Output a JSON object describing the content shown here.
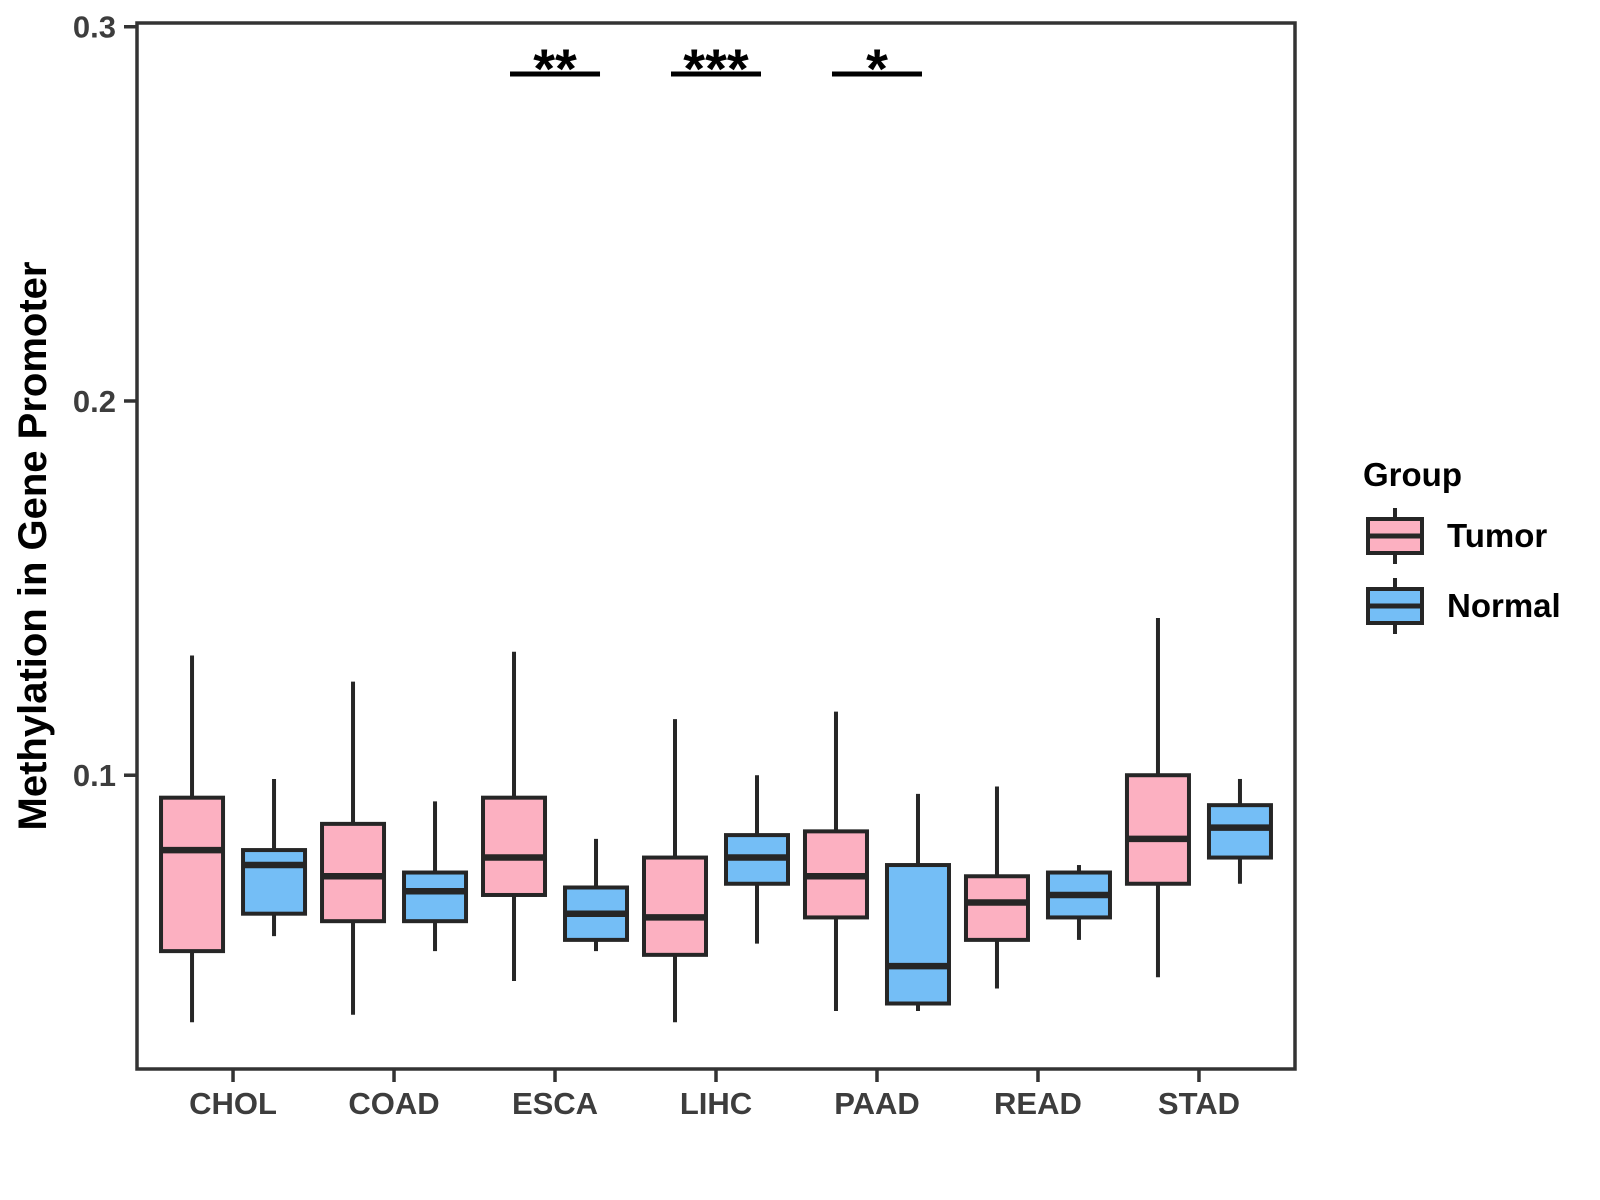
{
  "chart_data": {
    "type": "boxplot",
    "title": "",
    "xlabel": "",
    "ylabel": "Methylation in Gene Promoter",
    "categories": [
      "CHOL",
      "COAD",
      "ESCA",
      "LIHC",
      "PAAD",
      "READ",
      "STAD"
    ],
    "y_axis": {
      "ticks": [
        0.1,
        0.2,
        0.3
      ],
      "tick_labels": [
        "0.1",
        "0.2",
        "0.3"
      ],
      "domain": [
        0.0215,
        0.301
      ],
      "grid": false
    },
    "legend": {
      "title": "Group",
      "position": "right",
      "items": [
        {
          "label": "Tumor",
          "color": "#FCB0C1"
        },
        {
          "label": "Normal",
          "color": "#74BEF6"
        }
      ]
    },
    "series": [
      {
        "name": "Tumor",
        "color": "#FCB0C1",
        "boxes": [
          {
            "category": "CHOL",
            "whisker_low": 0.034,
            "q1": 0.053,
            "median": 0.08,
            "q3": 0.094,
            "whisker_high": 0.132
          },
          {
            "category": "COAD",
            "whisker_low": 0.036,
            "q1": 0.061,
            "median": 0.073,
            "q3": 0.087,
            "whisker_high": 0.125
          },
          {
            "category": "ESCA",
            "whisker_low": 0.045,
            "q1": 0.068,
            "median": 0.078,
            "q3": 0.094,
            "whisker_high": 0.133
          },
          {
            "category": "LIHC",
            "whisker_low": 0.034,
            "q1": 0.052,
            "median": 0.062,
            "q3": 0.078,
            "whisker_high": 0.115
          },
          {
            "category": "PAAD",
            "whisker_low": 0.037,
            "q1": 0.062,
            "median": 0.073,
            "q3": 0.085,
            "whisker_high": 0.117
          },
          {
            "category": "READ",
            "whisker_low": 0.043,
            "q1": 0.056,
            "median": 0.066,
            "q3": 0.073,
            "whisker_high": 0.097
          },
          {
            "category": "STAD",
            "whisker_low": 0.046,
            "q1": 0.071,
            "median": 0.083,
            "q3": 0.1,
            "whisker_high": 0.142
          }
        ]
      },
      {
        "name": "Normal",
        "color": "#74BEF6",
        "boxes": [
          {
            "category": "CHOL",
            "whisker_low": 0.057,
            "q1": 0.063,
            "median": 0.076,
            "q3": 0.08,
            "whisker_high": 0.099
          },
          {
            "category": "COAD",
            "whisker_low": 0.053,
            "q1": 0.061,
            "median": 0.069,
            "q3": 0.074,
            "whisker_high": 0.093
          },
          {
            "category": "ESCA",
            "whisker_low": 0.053,
            "q1": 0.056,
            "median": 0.063,
            "q3": 0.07,
            "whisker_high": 0.083
          },
          {
            "category": "LIHC",
            "whisker_low": 0.055,
            "q1": 0.071,
            "median": 0.078,
            "q3": 0.084,
            "whisker_high": 0.1
          },
          {
            "category": "PAAD",
            "whisker_low": 0.037,
            "q1": 0.039,
            "median": 0.049,
            "q3": 0.076,
            "whisker_high": 0.095
          },
          {
            "category": "READ",
            "whisker_low": 0.056,
            "q1": 0.062,
            "median": 0.068,
            "q3": 0.074,
            "whisker_high": 0.076
          },
          {
            "category": "STAD",
            "whisker_low": 0.071,
            "q1": 0.078,
            "median": 0.086,
            "q3": 0.092,
            "whisker_high": 0.099
          }
        ]
      }
    ],
    "annotations": [
      {
        "category": "ESCA",
        "label": "**"
      },
      {
        "category": "LIHC",
        "label": "***"
      },
      {
        "category": "PAAD",
        "label": "*"
      }
    ],
    "style": {
      "box_stroke": "#262626",
      "panel_border": "#333333",
      "tick_color": "#333333",
      "background": "#ffffff"
    }
  }
}
